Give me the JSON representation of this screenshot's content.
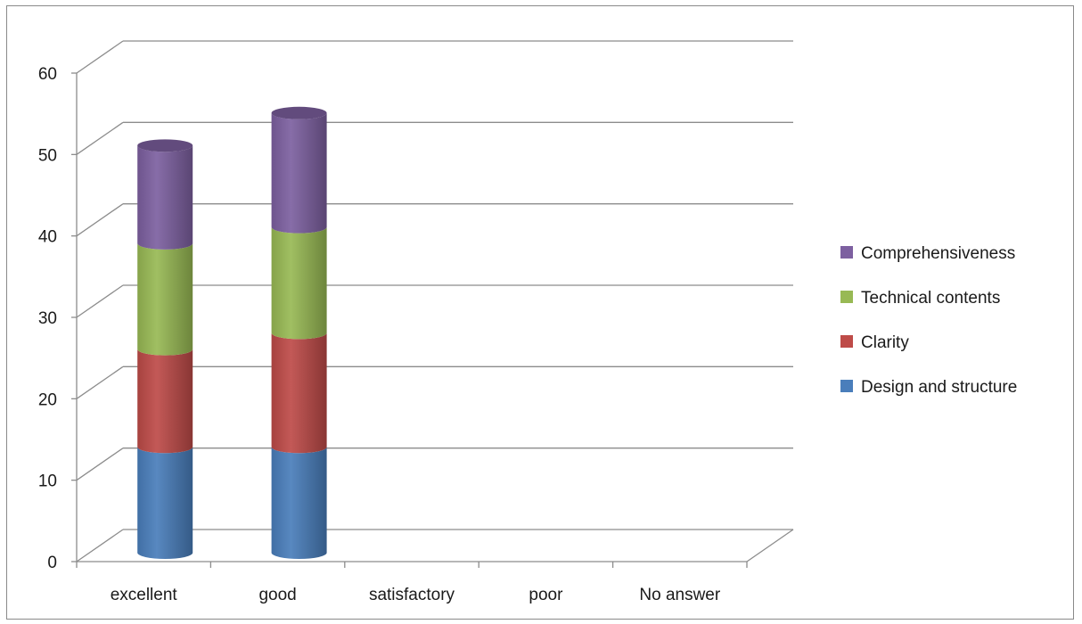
{
  "chart_data": {
    "type": "bar",
    "stacked": true,
    "style": "3d-cylinder",
    "categories": [
      "excellent",
      "good",
      "satisfactory",
      "poor",
      "No answer"
    ],
    "series": [
      {
        "name": "Design and structure",
        "color": "#4a7ebb",
        "values": [
          13,
          13,
          0,
          0,
          0
        ]
      },
      {
        "name": "Clarity",
        "color": "#be4b48",
        "values": [
          12,
          14,
          0,
          0,
          0
        ]
      },
      {
        "name": "Technical contents",
        "color": "#98b954",
        "values": [
          13,
          13,
          0,
          0,
          0
        ]
      },
      {
        "name": "Comprehensiveness",
        "color": "#7d60a0",
        "values": [
          12,
          14,
          0,
          0,
          0
        ]
      }
    ],
    "ylim": [
      0,
      60
    ],
    "yticks": [
      0,
      10,
      20,
      30,
      40,
      50,
      60
    ],
    "grid": true,
    "legend": "right",
    "title": "",
    "xlabel": "",
    "ylabel": ""
  }
}
